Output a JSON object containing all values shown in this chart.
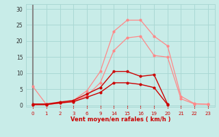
{
  "xlabel": "Vent moyen/en rafales ( km/h )",
  "background_color": "#c8ece8",
  "grid_color": "#aad8d4",
  "line_color_dark": "#cc0000",
  "line_color_light": "#ff8888",
  "tick_labels": [
    "0",
    "1",
    "2",
    "3",
    "6",
    "9",
    "14",
    "15",
    "16",
    "19",
    "20",
    "21",
    "22",
    "23"
  ],
  "yticks": [
    0,
    5,
    10,
    15,
    20,
    25,
    30
  ],
  "ylim": [
    -0.5,
    31.5
  ],
  "lines_light": [
    {
      "xi": [
        0,
        1,
        2,
        3,
        4,
        5,
        6,
        7,
        8,
        9,
        10,
        11,
        12,
        13
      ],
      "y": [
        5.8,
        0.2,
        0.8,
        1.5,
        4.5,
        10.5,
        23.0,
        26.5,
        26.5,
        21.5,
        18.5,
        2.8,
        0.5,
        0.3
      ]
    },
    {
      "xi": [
        0,
        1,
        2,
        3,
        4,
        5,
        6,
        7,
        8,
        9,
        10,
        11,
        12,
        13
      ],
      "y": [
        0.2,
        0.2,
        0.7,
        1.2,
        3.0,
        7.0,
        17.0,
        21.0,
        21.5,
        15.5,
        15.0,
        2.0,
        0.4,
        0.3
      ]
    }
  ],
  "lines_dark": [
    {
      "xi": [
        0,
        1,
        2,
        3,
        4,
        5,
        6,
        7,
        8,
        9,
        10
      ],
      "y": [
        0.4,
        0.4,
        1.0,
        1.5,
        3.5,
        5.5,
        10.5,
        10.5,
        9.0,
        9.5,
        0.4
      ]
    },
    {
      "xi": [
        0,
        1,
        2,
        3,
        4,
        5,
        6,
        7,
        8,
        9,
        10
      ],
      "y": [
        0.2,
        0.2,
        0.7,
        1.1,
        2.5,
        4.0,
        7.0,
        7.0,
        6.5,
        5.5,
        0.2
      ]
    }
  ],
  "vline_xi": 0,
  "vline_color": "#888888"
}
